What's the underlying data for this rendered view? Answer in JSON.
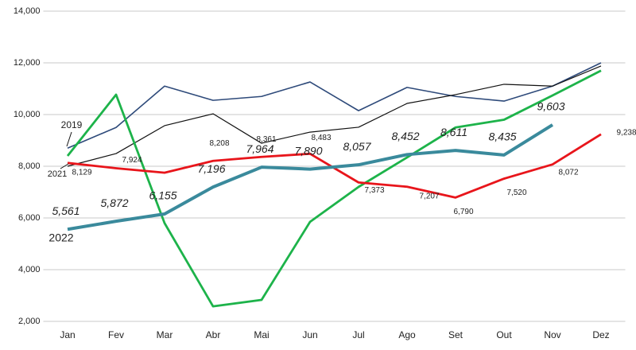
{
  "chart_data": {
    "type": "line",
    "categories": [
      "Jan",
      "Fev",
      "Mar",
      "Abr",
      "Mai",
      "Jun",
      "Jul",
      "Ago",
      "Set",
      "Out",
      "Nov",
      "Dez"
    ],
    "ylim": [
      2000,
      14000
    ],
    "yticks": [
      {
        "value": 2000,
        "label": "2,000"
      },
      {
        "value": 4000,
        "label": "4,000"
      },
      {
        "value": 6000,
        "label": "6,000"
      },
      {
        "value": 8000,
        "label": "8,000"
      },
      {
        "value": 10000,
        "label": "10,000"
      },
      {
        "value": 12000,
        "label": "12,000"
      },
      {
        "value": 14000,
        "label": "14,000"
      }
    ],
    "grid": true,
    "series": [
      {
        "name": "2019",
        "color": "#2e4a7a",
        "values": [
          8700,
          9500,
          11100,
          10550,
          10700,
          11260,
          10150,
          11050,
          10700,
          10520,
          11100,
          12000
        ]
      },
      {
        "color": "#111111",
        "values": [
          8000,
          8490,
          9570,
          10030,
          8890,
          9320,
          9510,
          10430,
          10770,
          11170,
          11100,
          11880
        ]
      },
      {
        "color": "#1db34a",
        "values": [
          8400,
          10770,
          5800,
          2580,
          2830,
          5850,
          7200,
          8340,
          9500,
          9800,
          10740,
          11700
        ]
      },
      {
        "name": "2021",
        "color": "#e8151b",
        "values": [
          8129,
          7924,
          7750,
          8208,
          8361,
          8483,
          7373,
          7207,
          6790,
          7520,
          8072,
          9238
        ],
        "value_labels": [
          "8,129",
          "7,924",
          null,
          "8,208",
          "8,361",
          "8,483",
          "7,373",
          "7,207",
          "6,790",
          "7,520",
          "8,072",
          "9,238"
        ]
      },
      {
        "name": "2022",
        "color": "#3a8a9c",
        "values": [
          5561,
          5872,
          6155,
          7196,
          7964,
          7890,
          8057,
          8452,
          8611,
          8435,
          9603,
          null
        ],
        "value_labels": [
          "5,561",
          "5,872",
          "6,155",
          "7,196",
          "7,964",
          "7,890",
          "8,057",
          "8,452",
          "8,611",
          "8,435",
          "9,603",
          null
        ]
      }
    ]
  }
}
